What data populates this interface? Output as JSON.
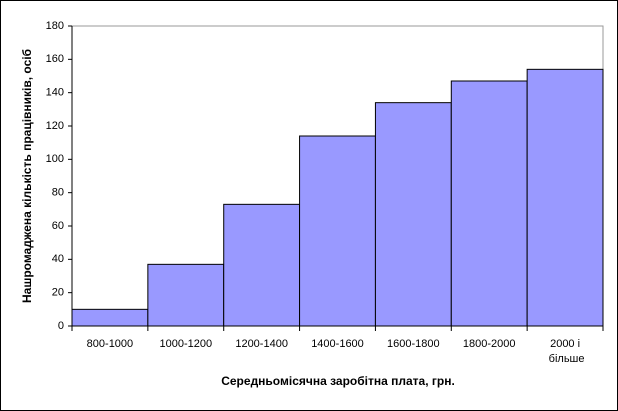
{
  "chart_data": {
    "type": "bar",
    "x_label": "Середньомісячна заробітна плата, грн.",
    "y_label": "Нашромаджена кількість працівників, осіб",
    "categories": [
      "800-1000",
      "1000-1200",
      "1200-1400",
      "1400-1600",
      "1600-1800",
      "1800-2000",
      "2000 і більше"
    ],
    "values": [
      10,
      37,
      73,
      114,
      134,
      147,
      154
    ],
    "color": "#9999ff",
    "ylim": [
      0,
      180
    ],
    "yticks": [
      0,
      20,
      40,
      60,
      80,
      100,
      120,
      140,
      160,
      180
    ],
    "grid": false
  }
}
